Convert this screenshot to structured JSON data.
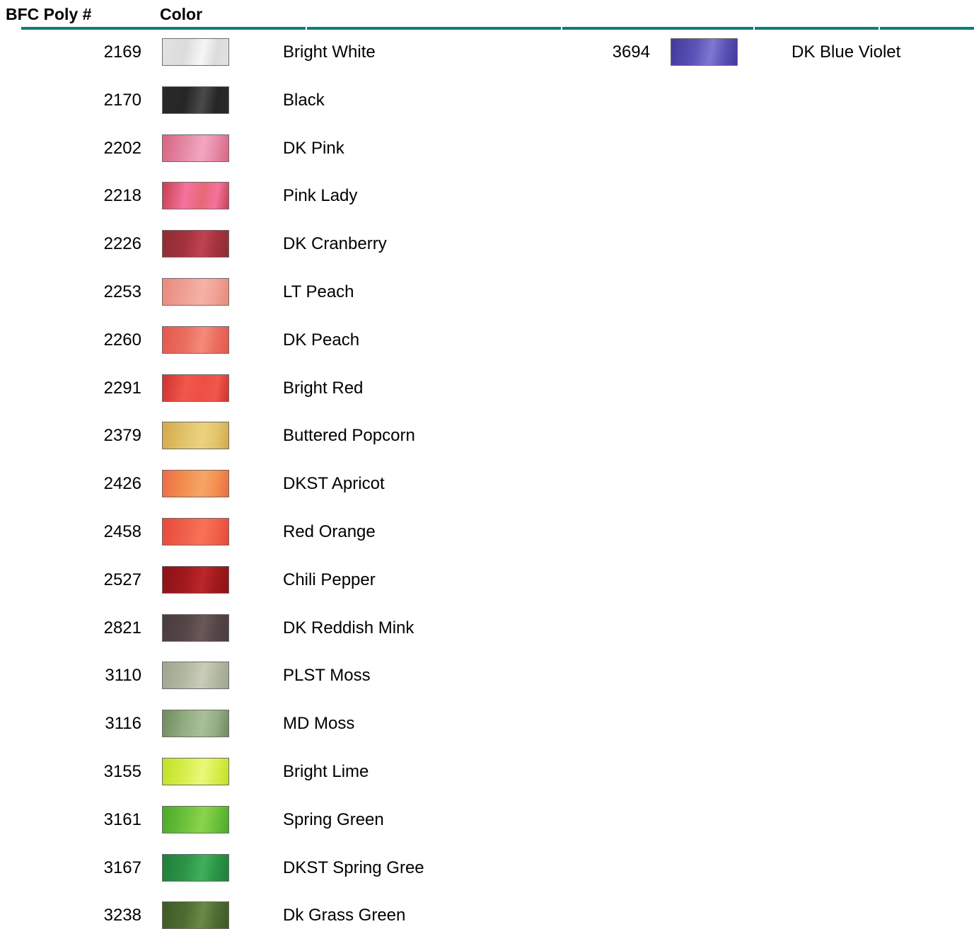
{
  "header": {
    "code_label": "BFC Poly #",
    "color_label": "Color",
    "rule_color": "#0e7c7b"
  },
  "columns": [
    {
      "rows": [
        {
          "code": "2169",
          "name": "Bright White",
          "swatch": [
            "#e2e2e2",
            "#f6f6f6",
            "#dcdcdc"
          ]
        },
        {
          "code": "2170",
          "name": "Black",
          "swatch": [
            "#2a2a2a",
            "#4a4a4a",
            "#262626"
          ]
        },
        {
          "code": "2202",
          "name": "DK Pink",
          "swatch": [
            "#d9657f",
            "#f3a6c0",
            "#e58aa6"
          ]
        },
        {
          "code": "2218",
          "name": "Pink Lady",
          "swatch": [
            "#c7404f",
            "#e66877",
            "#f4739e"
          ]
        },
        {
          "code": "2226",
          "name": "DK Cranberry",
          "swatch": [
            "#8e2c35",
            "#c04250",
            "#a4323c"
          ]
        },
        {
          "code": "2253",
          "name": "LT Peach",
          "swatch": [
            "#e98a7c",
            "#f6b2a6",
            "#f0a094"
          ]
        },
        {
          "code": "2260",
          "name": "DK Peach",
          "swatch": [
            "#e5584c",
            "#f58a79",
            "#e96e60"
          ]
        },
        {
          "code": "2291",
          "name": "Bright Red",
          "swatch": [
            "#cf3230",
            "#ee4e45",
            "#f1574b"
          ]
        },
        {
          "code": "2379",
          "name": "Buttered Popcorn",
          "swatch": [
            "#d5a84b",
            "#edd27f",
            "#e1c56a"
          ]
        },
        {
          "code": "2426",
          "name": "DKST Apricot",
          "swatch": [
            "#ec6a47",
            "#f7a466",
            "#f2904f"
          ]
        },
        {
          "code": "2458",
          "name": "Red Orange",
          "swatch": [
            "#e8483a",
            "#f87256",
            "#f0604a"
          ]
        },
        {
          "code": "2527",
          "name": "Chili Pepper",
          "swatch": [
            "#8d1216",
            "#bb262a",
            "#a0191d"
          ]
        },
        {
          "code": "2821",
          "name": "DK Reddish Mink",
          "swatch": [
            "#4a3d3e",
            "#6a5859",
            "#544546"
          ]
        },
        {
          "code": "3110",
          "name": "PLST Moss",
          "swatch": [
            "#9da68f",
            "#c9cdb9",
            "#b2b8a1"
          ]
        },
        {
          "code": "3116",
          "name": "MD Moss",
          "swatch": [
            "#6e8a5f",
            "#a8c097",
            "#94ad83"
          ]
        },
        {
          "code": "3155",
          "name": "Bright Lime",
          "swatch": [
            "#c2df28",
            "#eaf87a",
            "#d6ef4c"
          ]
        },
        {
          "code": "3161",
          "name": "Spring Green",
          "swatch": [
            "#4aa92a",
            "#8bd44a",
            "#6cc23a"
          ]
        },
        {
          "code": "3167",
          "name": "DKST Spring Gree",
          "swatch": [
            "#1f7e3b",
            "#3fb05a",
            "#2c9447"
          ]
        },
        {
          "code": "3238",
          "name": "Dk Grass Green",
          "swatch": [
            "#3d5a25",
            "#6b8a46",
            "#4e6c32"
          ]
        }
      ]
    },
    {
      "rows": [
        {
          "code": "3694",
          "name": "DK Blue Violet",
          "swatch": [
            "#42399a",
            "#7f78d1",
            "#5a52b6"
          ]
        }
      ]
    }
  ]
}
